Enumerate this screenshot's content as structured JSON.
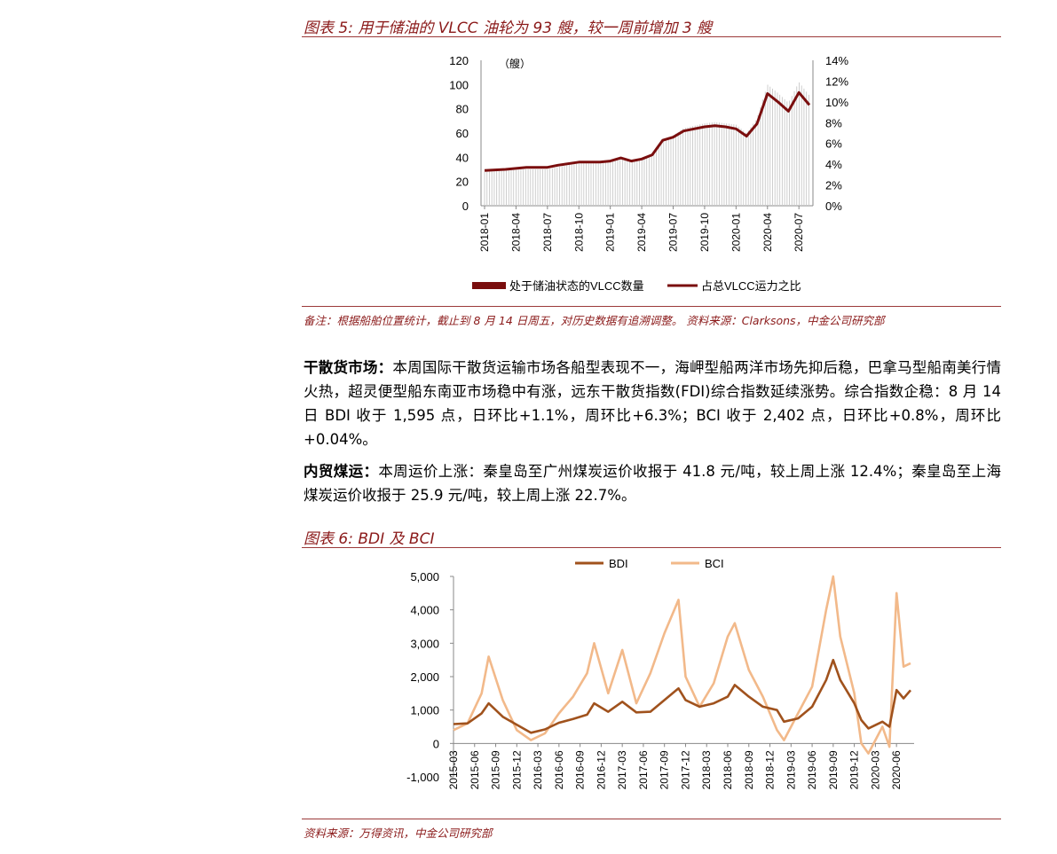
{
  "fig5": {
    "title": "图表 5: 用于储油的 VLCC 油轮为 93 艘，较一周前增加 3 艘",
    "note": "备注：根据船舶位置统计，截止到 8 月 14 日周五，对历史数据有追溯调整。 资料来源：Clarksons，中金公司研究部"
  },
  "paragraphs": [
    {
      "lead": "干散货市场：",
      "body": "本周国际干散货运输市场各船型表现不一，海岬型船两洋市场先抑后稳，巴拿马型船南美行情火热，超灵便型船东南亚市场稳中有涨，远东干散货指数(FDI)综合指数延续涨势。综合指数企稳：8 月 14 日 BDI 收于 1,595 点，日环比+1.1%，周环比+6.3%；BCI 收于 2,402 点，日环比+0.8%，周环比+0.04%。"
    },
    {
      "lead": "内贸煤运：",
      "body": "本周运价上涨：秦皇岛至广州煤炭运价收报于 41.8 元/吨，较上周上涨 12.4%；秦皇岛至上海煤炭运价收报于 25.9 元/吨，较上周上涨 22.7%。"
    }
  ],
  "fig6": {
    "title": "图表 6: BDI 及 BCI",
    "source": "资料来源：万得资讯，中金公司研究部"
  },
  "chart_data": [
    {
      "type": "bar+line",
      "unit_label": "（艘）",
      "x_ticks": [
        "2018-01",
        "2018-04",
        "2018-07",
        "2018-10",
        "2019-01",
        "2019-04",
        "2019-07",
        "2019-10",
        "2020-01",
        "2020-04",
        "2020-07"
      ],
      "ylim": [
        0,
        120
      ],
      "y_ticks": [
        "0",
        "20",
        "40",
        "60",
        "80",
        "100",
        "120"
      ],
      "y2lim": [
        0,
        14
      ],
      "y2_ticks": [
        "0%",
        "2%",
        "4%",
        "6%",
        "8%",
        "10%",
        "12%",
        "14%"
      ],
      "series": [
        {
          "name": "处于储油状态的VLCC数量",
          "kind": "bar",
          "color": "#7a0e0e",
          "x": [
            "2018-01",
            "2018-03",
            "2018-05",
            "2018-07",
            "2018-08",
            "2018-10",
            "2018-12",
            "2019-01",
            "2019-02",
            "2019-03",
            "2019-04",
            "2019-05",
            "2019-06",
            "2019-07",
            "2019-08",
            "2019-09",
            "2019-10",
            "2019-11",
            "2019-12",
            "2020-01",
            "2020-02",
            "2020-03",
            "2020-04",
            "2020-05",
            "2020-06",
            "2020-07",
            "2020-08"
          ],
          "values": [
            30,
            31,
            32,
            32,
            34,
            37,
            37,
            38,
            41,
            38,
            40,
            44,
            57,
            60,
            66,
            68,
            70,
            71,
            70,
            69,
            62,
            74,
            102,
            95,
            87,
            104,
            93
          ]
        },
        {
          "name": "占总VLCC运力之比",
          "kind": "line",
          "color": "#7a0e0e",
          "x": [
            "2018-01",
            "2018-03",
            "2018-05",
            "2018-07",
            "2018-08",
            "2018-10",
            "2018-12",
            "2019-01",
            "2019-02",
            "2019-03",
            "2019-04",
            "2019-05",
            "2019-06",
            "2019-07",
            "2019-08",
            "2019-09",
            "2019-10",
            "2019-11",
            "2019-12",
            "2020-01",
            "2020-02",
            "2020-03",
            "2020-04",
            "2020-05",
            "2020-06",
            "2020-07",
            "2020-08"
          ],
          "values": [
            3.4,
            3.5,
            3.7,
            3.7,
            3.9,
            4.2,
            4.2,
            4.3,
            4.6,
            4.3,
            4.5,
            4.9,
            6.3,
            6.6,
            7.2,
            7.4,
            7.6,
            7.7,
            7.6,
            7.4,
            6.7,
            7.9,
            10.8,
            10.0,
            9.1,
            10.9,
            9.7
          ]
        }
      ]
    },
    {
      "type": "line",
      "x_ticks": [
        "2015-03",
        "2015-06",
        "2015-09",
        "2015-12",
        "2016-03",
        "2016-06",
        "2016-09",
        "2016-12",
        "2017-03",
        "2017-06",
        "2017-09",
        "2017-12",
        "2018-03",
        "2018-06",
        "2018-09",
        "2018-12",
        "2019-03",
        "2019-06",
        "2019-09",
        "2019-12",
        "2020-03",
        "2020-06"
      ],
      "ylim": [
        -1000,
        5000
      ],
      "y_ticks": [
        "-1,000",
        "0",
        "1,000",
        "2,000",
        "3,000",
        "4,000",
        "5,000"
      ],
      "legend": "top",
      "series": [
        {
          "name": "BDI",
          "color": "#a0521d",
          "x": [
            "2015-03",
            "2015-05",
            "2015-07",
            "2015-08",
            "2015-10",
            "2015-12",
            "2016-02",
            "2016-04",
            "2016-06",
            "2016-08",
            "2016-10",
            "2016-11",
            "2017-01",
            "2017-03",
            "2017-05",
            "2017-07",
            "2017-09",
            "2017-11",
            "2017-12",
            "2018-02",
            "2018-04",
            "2018-06",
            "2018-07",
            "2018-09",
            "2018-11",
            "2019-01",
            "2019-02",
            "2019-04",
            "2019-06",
            "2019-08",
            "2019-09",
            "2019-10",
            "2019-12",
            "2020-01",
            "2020-02",
            "2020-04",
            "2020-05",
            "2020-06",
            "2020-07",
            "2020-08"
          ],
          "values": [
            580,
            600,
            900,
            1200,
            800,
            560,
            320,
            420,
            620,
            730,
            860,
            1200,
            950,
            1250,
            930,
            950,
            1300,
            1650,
            1300,
            1100,
            1200,
            1400,
            1750,
            1400,
            1100,
            1000,
            650,
            750,
            1100,
            1900,
            2500,
            1900,
            1200,
            700,
            450,
            650,
            500,
            1600,
            1350,
            1595
          ]
        },
        {
          "name": "BCI",
          "color": "#f2b98a",
          "x": [
            "2015-03",
            "2015-05",
            "2015-07",
            "2015-08",
            "2015-10",
            "2015-12",
            "2016-02",
            "2016-04",
            "2016-06",
            "2016-08",
            "2016-10",
            "2016-11",
            "2017-01",
            "2017-03",
            "2017-05",
            "2017-07",
            "2017-09",
            "2017-11",
            "2017-12",
            "2018-02",
            "2018-04",
            "2018-06",
            "2018-07",
            "2018-09",
            "2018-11",
            "2019-01",
            "2019-02",
            "2019-04",
            "2019-06",
            "2019-08",
            "2019-09",
            "2019-10",
            "2019-12",
            "2020-01",
            "2020-02",
            "2020-04",
            "2020-05",
            "2020-06",
            "2020-07",
            "2020-08"
          ],
          "values": [
            400,
            600,
            1500,
            2600,
            1300,
            400,
            100,
            300,
            900,
            1400,
            2100,
            3000,
            1500,
            2800,
            1200,
            2100,
            3300,
            4300,
            2000,
            1100,
            1800,
            3200,
            3600,
            2200,
            1400,
            400,
            100,
            900,
            1700,
            4000,
            5000,
            3200,
            1500,
            0,
            -300,
            500,
            -100,
            4500,
            2300,
            2402
          ]
        }
      ]
    }
  ]
}
